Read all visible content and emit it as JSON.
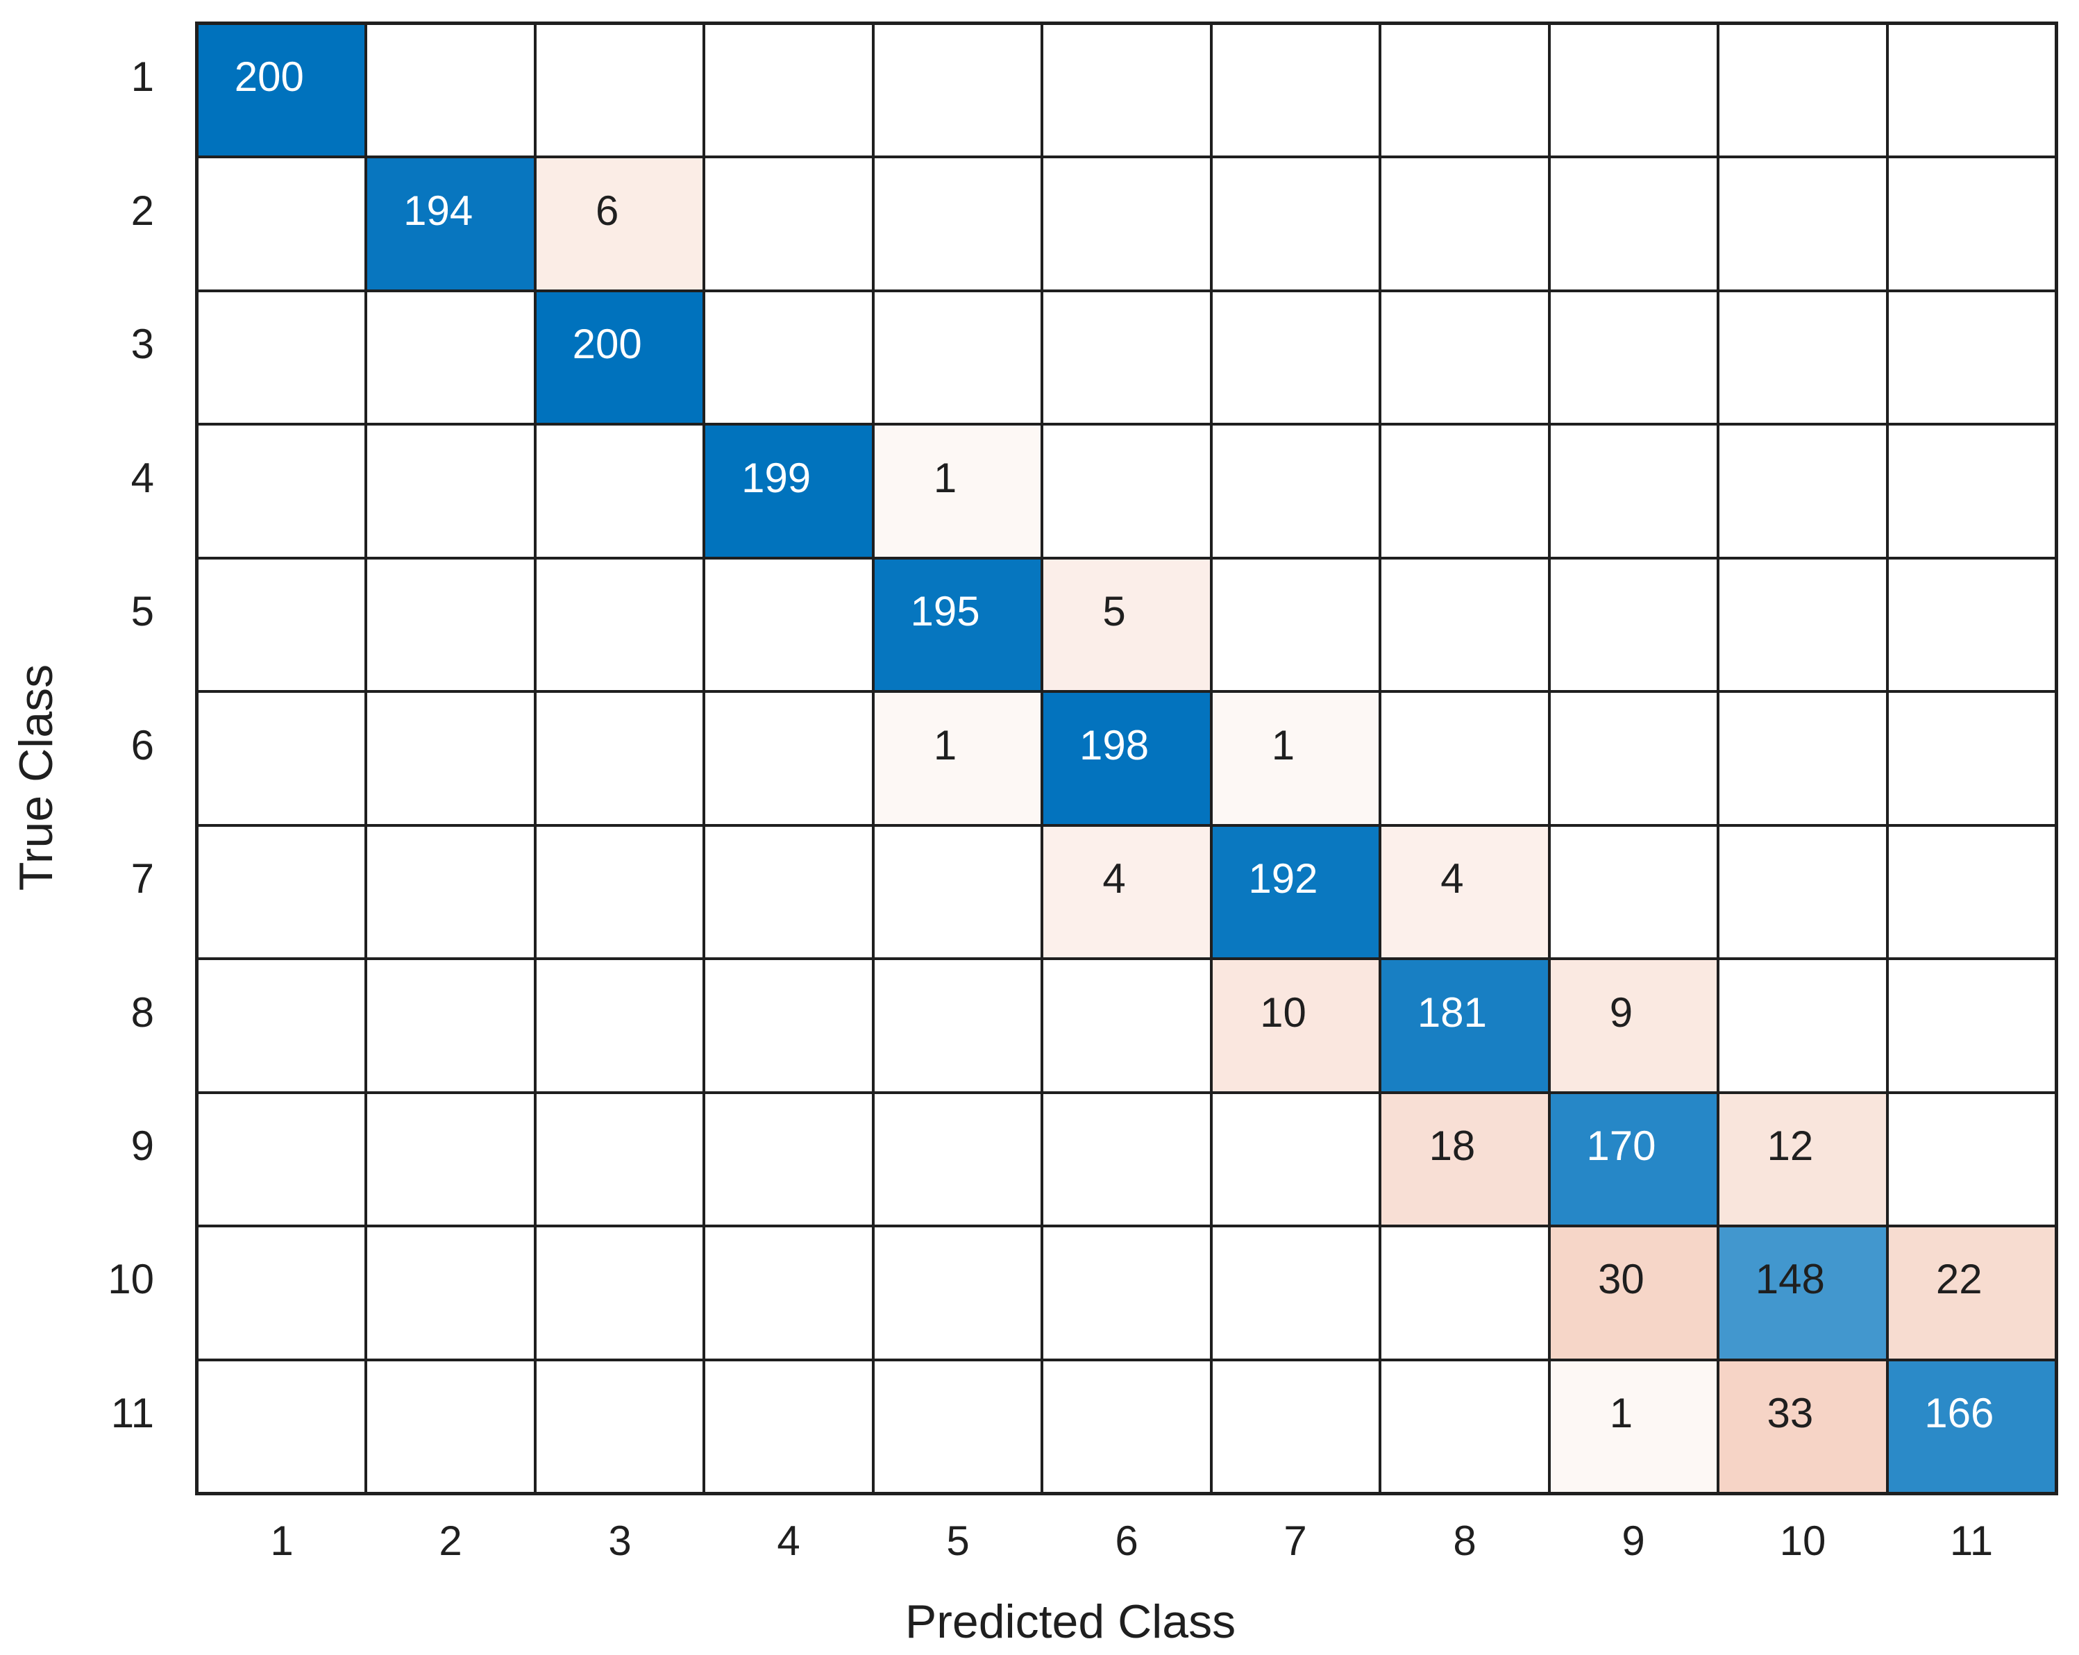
{
  "chart_data": {
    "type": "heatmap",
    "subtype": "confusion-matrix",
    "title": "",
    "xlabel": "Predicted Class",
    "ylabel": "True Class",
    "x_tick_labels": [
      "1",
      "2",
      "3",
      "4",
      "5",
      "6",
      "7",
      "8",
      "9",
      "10",
      "11"
    ],
    "y_tick_labels": [
      "1",
      "2",
      "3",
      "4",
      "5",
      "6",
      "7",
      "8",
      "9",
      "10",
      "11"
    ],
    "matrix": [
      [
        200,
        0,
        0,
        0,
        0,
        0,
        0,
        0,
        0,
        0,
        0
      ],
      [
        0,
        194,
        6,
        0,
        0,
        0,
        0,
        0,
        0,
        0,
        0
      ],
      [
        0,
        0,
        200,
        0,
        0,
        0,
        0,
        0,
        0,
        0,
        0
      ],
      [
        0,
        0,
        0,
        199,
        1,
        0,
        0,
        0,
        0,
        0,
        0
      ],
      [
        0,
        0,
        0,
        0,
        195,
        5,
        0,
        0,
        0,
        0,
        0
      ],
      [
        0,
        0,
        0,
        0,
        1,
        198,
        1,
        0,
        0,
        0,
        0
      ],
      [
        0,
        0,
        0,
        0,
        0,
        4,
        192,
        4,
        0,
        0,
        0
      ],
      [
        0,
        0,
        0,
        0,
        0,
        0,
        10,
        181,
        9,
        0,
        0
      ],
      [
        0,
        0,
        0,
        0,
        0,
        0,
        0,
        18,
        170,
        12,
        0
      ],
      [
        0,
        0,
        0,
        0,
        0,
        0,
        0,
        0,
        30,
        148,
        22
      ],
      [
        0,
        0,
        0,
        0,
        0,
        0,
        0,
        0,
        1,
        33,
        166
      ]
    ],
    "max_diagonal": 200,
    "max_off_diagonal": 33,
    "colors": {
      "diagonal_base": "#0072BD",
      "off_diagonal_base": "#D95319",
      "empty_cell": "#FFFFFF",
      "grid_line": "#1F1F1F",
      "background": "#FFFFFF",
      "cell_text_dark": "#1F1F1F",
      "cell_text_light": "#FFFFFF"
    },
    "color_rules": {
      "diagonal_alpha": "value / max_diagonal",
      "off_diagonal_alpha": "0.25 * sqrt(value / max_off_diagonal)",
      "white_text_alpha_threshold": 0.79
    },
    "layout_hints": {
      "grid_on": true,
      "legend": "none",
      "x_axis_position": "bottom",
      "y_axis_position": "left"
    }
  }
}
